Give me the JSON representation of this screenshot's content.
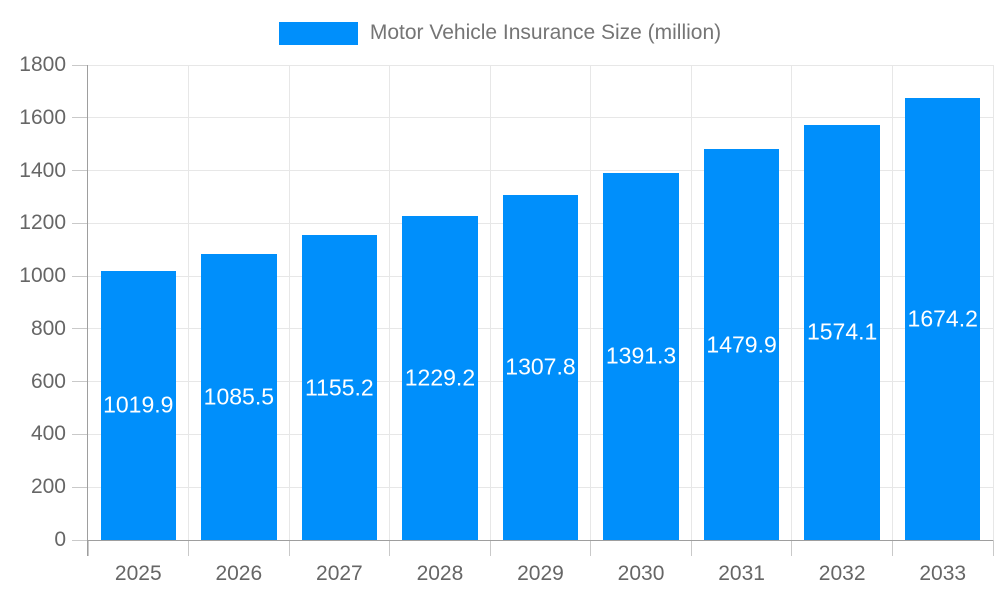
{
  "legend": {
    "label": "Motor Vehicle Insurance Size (million)",
    "swatch_color": "#008FFB"
  },
  "chart_data": {
    "type": "bar",
    "title": "",
    "xlabel": "",
    "ylabel": "",
    "categories": [
      "2025",
      "2026",
      "2027",
      "2028",
      "2029",
      "2030",
      "2031",
      "2032",
      "2033"
    ],
    "series": [
      {
        "name": "Motor Vehicle Insurance Size (million)",
        "values": [
          1019.9,
          1085.5,
          1155.2,
          1229.2,
          1307.8,
          1391.3,
          1479.9,
          1574.1,
          1674.2
        ]
      }
    ],
    "value_labels": [
      "1019.9",
      "1085.5",
      "1155.2",
      "1229.2",
      "1307.8",
      "1391.3",
      "1479.9",
      "1574.1",
      "1674.2"
    ],
    "ylim": [
      0,
      1800
    ],
    "yticks": [
      0,
      200,
      400,
      600,
      800,
      1000,
      1200,
      1400,
      1600,
      1800
    ],
    "grid": true,
    "legend_position": "top",
    "bar_color": "#008FFB",
    "value_label_color": "#ffffff"
  },
  "colors": {
    "grid": "#e7e7e7",
    "axis": "#9e9e9e",
    "tick": "#c9c9c9",
    "axis_label": "#666666",
    "legend_text": "#757575",
    "background": "#ffffff"
  }
}
